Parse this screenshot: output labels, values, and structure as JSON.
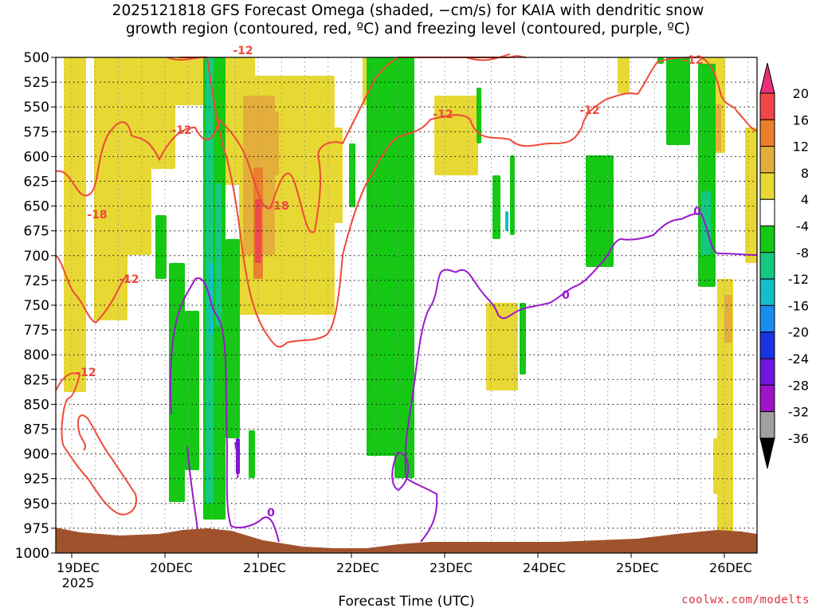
{
  "title_line1": "2025121818 GFS Forecast Omega (shaded, −cm/s) for KAIA with dendritic snow",
  "title_line2": "growth region (contoured, red, ºC) and freezing level (contoured, purple, ºC)",
  "credit": "coolwx.com/modelts",
  "chart_data": {
    "type": "heatmap",
    "xlabel": "Forecast Time (UTC)",
    "x_ticks": [
      "19DEC",
      "20DEC",
      "21DEC",
      "22DEC",
      "23DEC",
      "24DEC",
      "25DEC",
      "26DEC"
    ],
    "x_year_label": "2025",
    "y_ticks": [
      500,
      525,
      550,
      575,
      600,
      625,
      650,
      675,
      700,
      725,
      750,
      775,
      800,
      825,
      850,
      875,
      900,
      925,
      950,
      975,
      1000
    ],
    "ylim": [
      1000,
      500
    ],
    "colorbar": {
      "labels": [
        "20",
        "16",
        "12",
        "8",
        "4",
        "-4",
        "-8",
        "-12",
        "-16",
        "-20",
        "-24",
        "-28",
        "-32",
        "-36"
      ],
      "colors": [
        "#e8307a",
        "#f04848",
        "#ec7f2c",
        "#e4ae3a",
        "#e8d834",
        "#ffffff",
        "#14c814",
        "#14c880",
        "#10c0c8",
        "#1a8cf0",
        "#1a34e4",
        "#7014e0",
        "#a012c8",
        "#a0a0a0",
        "#000000"
      ]
    },
    "contour_labels": {
      "dgz_red": [
        "-12",
        "-18",
        "-12",
        "-12",
        "-12",
        "-18",
        "-12",
        "-12",
        "-12"
      ],
      "freezing_purple": [
        "0",
        "0",
        "0"
      ]
    },
    "colors": {
      "dgz": "#ee4a3a",
      "freezing": "#9a18cc",
      "terrain": "#a0522d"
    }
  }
}
